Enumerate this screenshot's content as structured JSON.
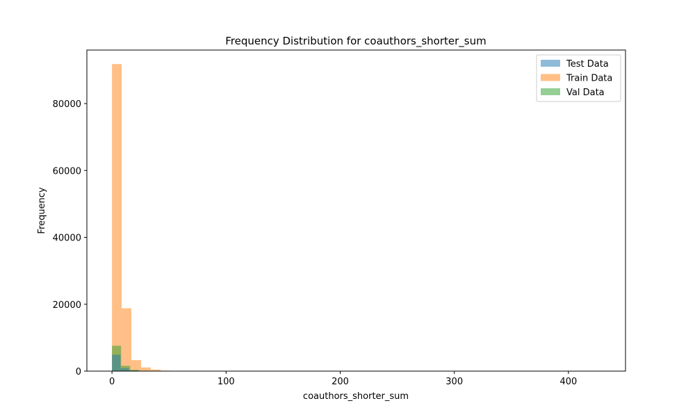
{
  "chart_data": {
    "type": "bar",
    "title": "Frequency Distribution for coauthors_shorter_sum",
    "xlabel": "coauthors_shorter_sum",
    "ylabel": "Frequency",
    "xlim": [
      -22,
      450
    ],
    "ylim": [
      0,
      96000
    ],
    "xticks": [
      0,
      100,
      200,
      300,
      400
    ],
    "xtick_labels": [
      "0",
      "100",
      "200",
      "300",
      "400"
    ],
    "yticks": [
      0,
      20000,
      40000,
      60000,
      80000
    ],
    "ytick_labels": [
      "0",
      "20000",
      "40000",
      "60000",
      "80000"
    ],
    "grid": false,
    "legend_position": "top-right",
    "series": [
      {
        "name": "Train Data",
        "color": "#ff7f0e",
        "opacity": 0.5,
        "bins": [
          {
            "x0": 0,
            "x1": 8.5,
            "count": 91800
          },
          {
            "x0": 8.5,
            "x1": 17,
            "count": 18800
          },
          {
            "x0": 17,
            "x1": 25.5,
            "count": 3300
          },
          {
            "x0": 25.5,
            "x1": 34,
            "count": 1100
          },
          {
            "x0": 34,
            "x1": 42.5,
            "count": 450
          },
          {
            "x0": 42.5,
            "x1": 51,
            "count": 150
          },
          {
            "x0": 51,
            "x1": 59.5,
            "count": 60
          },
          {
            "x0": 59.5,
            "x1": 68,
            "count": 25
          }
        ]
      },
      {
        "name": "Val Data",
        "color": "#2ca02c",
        "opacity": 0.5,
        "bins": [
          {
            "x0": 0,
            "x1": 8,
            "count": 7600
          },
          {
            "x0": 8,
            "x1": 16,
            "count": 1600
          },
          {
            "x0": 16,
            "x1": 24,
            "count": 400
          },
          {
            "x0": 24,
            "x1": 32,
            "count": 120
          },
          {
            "x0": 32,
            "x1": 40,
            "count": 40
          }
        ]
      },
      {
        "name": "Test Data",
        "color": "#1f77b4",
        "opacity": 0.5,
        "bins": [
          {
            "x0": 0,
            "x1": 7.5,
            "count": 4900
          },
          {
            "x0": 7.5,
            "x1": 15,
            "count": 900
          },
          {
            "x0": 15,
            "x1": 22.5,
            "count": 200
          },
          {
            "x0": 22.5,
            "x1": 30,
            "count": 60
          }
        ]
      }
    ],
    "legend": [
      {
        "label": "Test Data",
        "color": "#1f77b4"
      },
      {
        "label": "Train Data",
        "color": "#ff7f0e"
      },
      {
        "label": "Val Data",
        "color": "#2ca02c"
      }
    ]
  }
}
